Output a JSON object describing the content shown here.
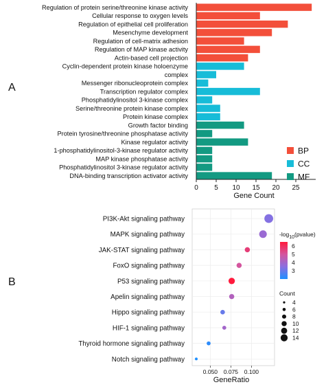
{
  "panels": {
    "a": "A",
    "b": "B"
  },
  "chart_data": [
    {
      "type": "bar",
      "orientation": "horizontal",
      "categories": [
        "Regulation of protein serine/threonine kinase activity",
        "Cellular response to oxygen levels",
        "Regulation of epithelial cell proliferation",
        "Mesenchyme development",
        "Regulation of cell-matrix adhesion",
        "Regulation of MAP kinase activity",
        "Actin-based cell projection",
        "Cyclin-dependent protein kinase holoenzyme",
        "complex",
        "Messenger ribonucleoprotein complex",
        "Transcription regulator complex",
        "Phosphatidylinositol 3-kinase complex",
        "Serine/threonine protein kinase complex",
        "Protein kinase complex",
        "Growth factor binding",
        "Protein tyrosine/threonine phosphatase activity",
        "Kinase regulator activity",
        "1-phosphatidylinositol-3-kinase regulator activity",
        "MAP kinase phosphatase activity",
        "Phosphatidylinositol 3-kinase regulator activity",
        "DNA-binding transcription activator activity"
      ],
      "bars": [
        {
          "row": 0,
          "value": 29,
          "group": "BP"
        },
        {
          "row": 1,
          "value": 16,
          "group": "BP"
        },
        {
          "row": 2,
          "value": 23,
          "group": "BP"
        },
        {
          "row": 3,
          "value": 19,
          "group": "BP"
        },
        {
          "row": 4,
          "value": 12,
          "group": "BP"
        },
        {
          "row": 5,
          "value": 16,
          "group": "BP"
        },
        {
          "row": 6,
          "value": 13,
          "group": "BP"
        },
        {
          "row": 7,
          "value": 12,
          "group": "CC"
        },
        {
          "row": 8,
          "value": 5,
          "group": "CC"
        },
        {
          "row": 9,
          "value": 3,
          "group": "CC"
        },
        {
          "row": 10,
          "value": 16,
          "group": "CC"
        },
        {
          "row": 11,
          "value": 4,
          "group": "CC"
        },
        {
          "row": 12,
          "value": 6,
          "group": "CC"
        },
        {
          "row": 13,
          "value": 6,
          "group": "CC"
        },
        {
          "row": 14,
          "value": 12,
          "group": "MF"
        },
        {
          "row": 15,
          "value": 4,
          "group": "MF"
        },
        {
          "row": 16,
          "value": 13,
          "group": "MF"
        },
        {
          "row": 17,
          "value": 4,
          "group": "MF"
        },
        {
          "row": 18,
          "value": 4,
          "group": "MF"
        },
        {
          "row": 19,
          "value": 4,
          "group": "MF"
        },
        {
          "row": 20,
          "value": 19,
          "group": "MF"
        }
      ],
      "groups": [
        {
          "name": "BP",
          "color": "#f34f3a"
        },
        {
          "name": "CC",
          "color": "#17bcd8"
        },
        {
          "name": "MF",
          "color": "#139a82"
        }
      ],
      "xlabel": "Gene Count",
      "xticks": [
        0,
        5,
        10,
        15,
        20,
        25
      ],
      "xlim": [
        0,
        30
      ],
      "legend_position": "right"
    },
    {
      "type": "scatter",
      "subtype": "dot-plot",
      "categories": [
        "PI3K-Akt signaling pathway",
        "MAPK signaling pathway",
        "JAK-STAT signaling pathway",
        "FoxO signaling pathway",
        "P53 signaling pathway",
        "Apelin signaling pathway",
        "Hippo signaling pathway",
        "HIF-1 signaling pathway",
        "Thyroid hormone signaling pathway",
        "Notch signaling pathway"
      ],
      "points": [
        {
          "pathway": "PI3K-Akt signaling pathway",
          "gene_ratio": 0.121,
          "count": 14,
          "neg_log10_p": 3.4
        },
        {
          "pathway": "MAPK signaling pathway",
          "gene_ratio": 0.114,
          "count": 12,
          "neg_log10_p": 3.8
        },
        {
          "pathway": "JAK-STAT signaling pathway",
          "gene_ratio": 0.095,
          "count": 8,
          "neg_log10_p": 5.6
        },
        {
          "pathway": "FoxO signaling pathway",
          "gene_ratio": 0.085,
          "count": 8,
          "neg_log10_p": 5.0
        },
        {
          "pathway": "P53 signaling pathway",
          "gene_ratio": 0.076,
          "count": 10,
          "neg_log10_p": 6.5
        },
        {
          "pathway": "Apelin signaling pathway",
          "gene_ratio": 0.076,
          "count": 8,
          "neg_log10_p": 4.3
        },
        {
          "pathway": "Hippo signaling pathway",
          "gene_ratio": 0.065,
          "count": 7,
          "neg_log10_p": 3.0
        },
        {
          "pathway": "HIF-1 signaling pathway",
          "gene_ratio": 0.067,
          "count": 6,
          "neg_log10_p": 4.0
        },
        {
          "pathway": "Thyroid hormone signaling pathway",
          "gene_ratio": 0.048,
          "count": 6,
          "neg_log10_p": 2.2
        },
        {
          "pathway": "Notch signaling pathway",
          "gene_ratio": 0.033,
          "count": 4,
          "neg_log10_p": 2.0
        }
      ],
      "xlabel": "GeneRatio",
      "xticks": [
        0.05,
        0.075,
        0.1
      ],
      "xtick_labels": [
        "0.050",
        "0.075",
        "0.100"
      ],
      "xlim": [
        0.028,
        0.128
      ],
      "color_legend": {
        "title_base": "-log",
        "title_sub": "10",
        "title_rest": "(pvalue)",
        "ticks": [
          3,
          4,
          5,
          6
        ],
        "range": [
          2,
          6.5
        ],
        "colors": [
          "#1e90ff",
          "#8b6fe0",
          "#d4559e",
          "#ff1a3c"
        ]
      },
      "size_legend": {
        "title": "Count",
        "values": [
          4,
          6,
          8,
          10,
          12,
          14
        ]
      }
    }
  ]
}
